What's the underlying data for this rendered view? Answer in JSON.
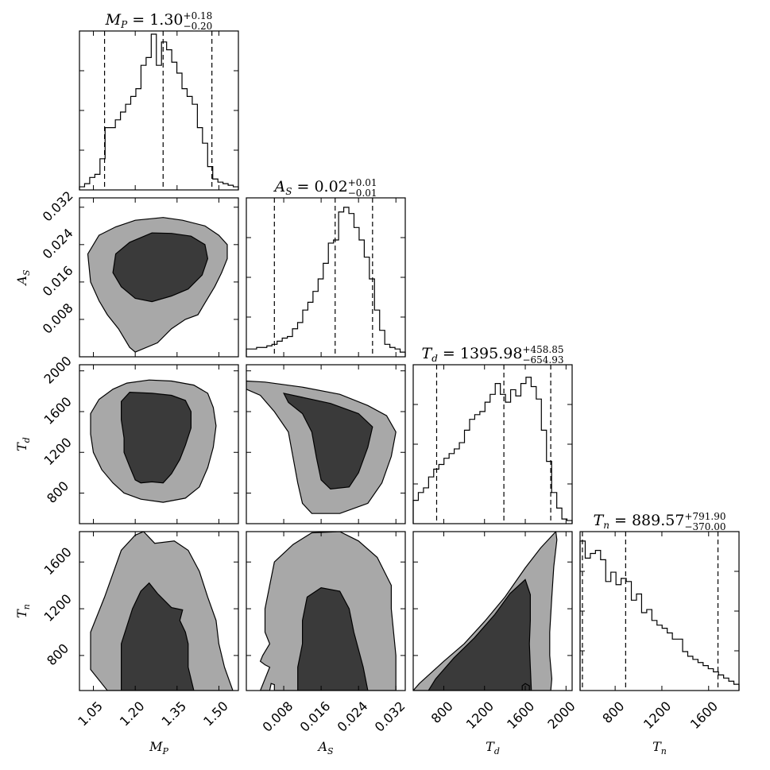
{
  "chart_data": {
    "type": "corner",
    "parameters": [
      {
        "key": "MP",
        "symbol": "M",
        "sub": "P",
        "range": [
          1.0,
          1.57
        ],
        "ticks": [
          1.05,
          1.2,
          1.35,
          1.5
        ],
        "tick_labels": [
          "1.05",
          "1.20",
          "1.35",
          "1.50"
        ],
        "title": {
          "eq": " = ",
          "value": "1.30",
          "plus": "+0.18",
          "minus": "−0.20"
        },
        "quantiles": [
          1.09,
          1.3,
          1.475
        ],
        "hist": [
          0.02,
          0.04,
          0.08,
          0.1,
          0.2,
          0.4,
          0.4,
          0.45,
          0.5,
          0.55,
          0.6,
          0.65,
          0.8,
          0.85,
          1.0,
          0.8,
          0.95,
          0.9,
          0.82,
          0.75,
          0.65,
          0.6,
          0.55,
          0.4,
          0.3,
          0.15,
          0.07,
          0.05,
          0.04,
          0.03,
          0.02
        ]
      },
      {
        "key": "AS",
        "symbol": "A",
        "sub": "S",
        "range": [
          0.0,
          0.034
        ],
        "ticks": [
          0.008,
          0.016,
          0.024,
          0.032
        ],
        "tick_labels": [
          "0.008",
          "0.016",
          "0.024",
          "0.032"
        ],
        "title": {
          "eq": " = ",
          "value": "0.02",
          "plus": "+0.01",
          "minus": "−0.01"
        },
        "quantiles": [
          0.006,
          0.019,
          0.027
        ],
        "hist": [
          0.05,
          0.05,
          0.06,
          0.06,
          0.07,
          0.08,
          0.1,
          0.12,
          0.13,
          0.18,
          0.22,
          0.3,
          0.35,
          0.42,
          0.5,
          0.6,
          0.73,
          0.75,
          0.93,
          0.96,
          0.92,
          0.83,
          0.75,
          0.64,
          0.5,
          0.3,
          0.17,
          0.08,
          0.06,
          0.05,
          0.03
        ]
      },
      {
        "key": "Td",
        "symbol": "T",
        "sub": "d",
        "range": [
          500,
          2060
        ],
        "ticks": [
          800,
          1200,
          1600,
          2000
        ],
        "tick_labels": [
          "800",
          "1200",
          "1600",
          "2000"
        ],
        "title": {
          "eq": " = ",
          "value": "1395.98",
          "plus": "+458.85",
          "minus": "−654.93"
        },
        "quantiles": [
          730,
          1390,
          1850
        ],
        "hist": [
          0.15,
          0.2,
          0.23,
          0.3,
          0.35,
          0.38,
          0.42,
          0.45,
          0.48,
          0.52,
          0.6,
          0.67,
          0.7,
          0.72,
          0.78,
          0.83,
          0.9,
          0.83,
          0.78,
          0.86,
          0.82,
          0.9,
          0.94,
          0.88,
          0.8,
          0.6,
          0.4,
          0.2,
          0.1,
          0.03,
          0.02
        ]
      },
      {
        "key": "Tn",
        "symbol": "T",
        "sub": "n",
        "range": [
          500,
          1860
        ],
        "ticks": [
          800,
          1200,
          1600
        ],
        "tick_labels": [
          "800",
          "1200",
          "1600"
        ],
        "title": {
          "eq": " = ",
          "value": "889.57",
          "plus": "+791.90",
          "minus": "−370.00"
        },
        "quantiles": [
          520,
          890,
          1680
        ],
        "hist": [
          0.96,
          0.85,
          0.88,
          0.9,
          0.84,
          0.7,
          0.76,
          0.68,
          0.72,
          0.7,
          0.58,
          0.62,
          0.5,
          0.52,
          0.45,
          0.42,
          0.4,
          0.37,
          0.33,
          0.33,
          0.25,
          0.22,
          0.2,
          0.18,
          0.16,
          0.14,
          0.12,
          0.1,
          0.08,
          0.06,
          0.04
        ]
      }
    ],
    "contours": [
      {
        "x": "MP",
        "y": "AS",
        "outer": [
          [
            1.3,
            0.0298
          ],
          [
            1.37,
            0.0292
          ],
          [
            1.45,
            0.028
          ],
          [
            1.5,
            0.026
          ],
          [
            1.53,
            0.024
          ],
          [
            1.53,
            0.021
          ],
          [
            1.51,
            0.018
          ],
          [
            1.485,
            0.015
          ],
          [
            1.455,
            0.012
          ],
          [
            1.425,
            0.009
          ],
          [
            1.38,
            0.008
          ],
          [
            1.33,
            0.006
          ],
          [
            1.28,
            0.003
          ],
          [
            1.2,
            0.001
          ],
          [
            1.18,
            0.002
          ],
          [
            1.14,
            0.006
          ],
          [
            1.1,
            0.009
          ],
          [
            1.07,
            0.012
          ],
          [
            1.04,
            0.016
          ],
          [
            1.03,
            0.022
          ],
          [
            1.07,
            0.026
          ],
          [
            1.13,
            0.0278
          ],
          [
            1.2,
            0.0292
          ]
        ],
        "inner": [
          [
            1.26,
            0.0265
          ],
          [
            1.33,
            0.0264
          ],
          [
            1.4,
            0.0258
          ],
          [
            1.45,
            0.024
          ],
          [
            1.46,
            0.021
          ],
          [
            1.44,
            0.0175
          ],
          [
            1.39,
            0.0145
          ],
          [
            1.33,
            0.013
          ],
          [
            1.26,
            0.0118
          ],
          [
            1.2,
            0.0125
          ],
          [
            1.15,
            0.015
          ],
          [
            1.12,
            0.018
          ],
          [
            1.13,
            0.022
          ],
          [
            1.18,
            0.0245
          ]
        ]
      },
      {
        "x": "MP",
        "y": "Td",
        "outer": [
          [
            1.25,
            1910
          ],
          [
            1.33,
            1900
          ],
          [
            1.41,
            1860
          ],
          [
            1.46,
            1780
          ],
          [
            1.48,
            1640
          ],
          [
            1.49,
            1460
          ],
          [
            1.48,
            1250
          ],
          [
            1.46,
            1050
          ],
          [
            1.43,
            860
          ],
          [
            1.38,
            750
          ],
          [
            1.3,
            710
          ],
          [
            1.22,
            740
          ],
          [
            1.16,
            800
          ],
          [
            1.12,
            900
          ],
          [
            1.08,
            1030
          ],
          [
            1.05,
            1200
          ],
          [
            1.04,
            1380
          ],
          [
            1.04,
            1580
          ],
          [
            1.07,
            1720
          ],
          [
            1.12,
            1820
          ],
          [
            1.17,
            1880
          ]
        ],
        "inner": [
          [
            1.18,
            1790
          ],
          [
            1.26,
            1780
          ],
          [
            1.33,
            1760
          ],
          [
            1.38,
            1710
          ],
          [
            1.4,
            1600
          ],
          [
            1.4,
            1440
          ],
          [
            1.38,
            1270
          ],
          [
            1.36,
            1130
          ],
          [
            1.33,
            990
          ],
          [
            1.3,
            900
          ],
          [
            1.26,
            910
          ],
          [
            1.22,
            900
          ],
          [
            1.2,
            930
          ],
          [
            1.18,
            1060
          ],
          [
            1.16,
            1200
          ],
          [
            1.16,
            1340
          ],
          [
            1.15,
            1520
          ],
          [
            1.15,
            1700
          ]
        ]
      },
      {
        "x": "MP",
        "y": "Tn",
        "outer": [
          [
            1.1,
            500
          ],
          [
            1.04,
            680
          ],
          [
            1.04,
            1000
          ],
          [
            1.09,
            1300
          ],
          [
            1.12,
            1500
          ],
          [
            1.15,
            1700
          ],
          [
            1.2,
            1830
          ],
          [
            1.23,
            1860
          ],
          [
            1.27,
            1760
          ],
          [
            1.34,
            1780
          ],
          [
            1.39,
            1700
          ],
          [
            1.43,
            1520
          ],
          [
            1.46,
            1300
          ],
          [
            1.49,
            1100
          ],
          [
            1.5,
            900
          ],
          [
            1.52,
            700
          ],
          [
            1.55,
            500
          ]
        ],
        "inner": [
          [
            1.15,
            500
          ],
          [
            1.15,
            900
          ],
          [
            1.19,
            1200
          ],
          [
            1.22,
            1350
          ],
          [
            1.25,
            1420
          ],
          [
            1.28,
            1330
          ],
          [
            1.33,
            1210
          ],
          [
            1.37,
            1190
          ],
          [
            1.36,
            1100
          ],
          [
            1.38,
            1000
          ],
          [
            1.39,
            900
          ],
          [
            1.39,
            700
          ],
          [
            1.41,
            500
          ]
        ]
      },
      {
        "x": "AS",
        "y": "Td",
        "outer": [
          [
            0.0,
            1900
          ],
          [
            0.004,
            1890
          ],
          [
            0.012,
            1840
          ],
          [
            0.02,
            1770
          ],
          [
            0.026,
            1660
          ],
          [
            0.03,
            1560
          ],
          [
            0.032,
            1400
          ],
          [
            0.031,
            1160
          ],
          [
            0.029,
            900
          ],
          [
            0.026,
            700
          ],
          [
            0.02,
            600
          ],
          [
            0.014,
            600
          ],
          [
            0.012,
            700
          ],
          [
            0.011,
            900
          ],
          [
            0.01,
            1150
          ],
          [
            0.009,
            1400
          ],
          [
            0.006,
            1600
          ],
          [
            0.003,
            1760
          ],
          [
            0.0,
            1820
          ]
        ],
        "inner": [
          [
            0.008,
            1780
          ],
          [
            0.012,
            1740
          ],
          [
            0.018,
            1680
          ],
          [
            0.024,
            1580
          ],
          [
            0.027,
            1450
          ],
          [
            0.026,
            1250
          ],
          [
            0.024,
            1000
          ],
          [
            0.022,
            860
          ],
          [
            0.018,
            840
          ],
          [
            0.016,
            930
          ],
          [
            0.015,
            1150
          ],
          [
            0.014,
            1400
          ],
          [
            0.012,
            1580
          ],
          [
            0.009,
            1690
          ]
        ]
      },
      {
        "x": "AS",
        "y": "Tn",
        "outer": [
          [
            0.003,
            500
          ],
          [
            0.004,
            600
          ],
          [
            0.005,
            700
          ],
          [
            0.004,
            720
          ],
          [
            0.003,
            750
          ],
          [
            0.0035,
            800
          ],
          [
            0.005,
            900
          ],
          [
            0.004,
            1000
          ],
          [
            0.004,
            1200
          ],
          [
            0.005,
            1400
          ],
          [
            0.006,
            1600
          ],
          [
            0.01,
            1750
          ],
          [
            0.014,
            1850
          ],
          [
            0.02,
            1860
          ],
          [
            0.024,
            1780
          ],
          [
            0.028,
            1640
          ],
          [
            0.031,
            1400
          ],
          [
            0.031,
            1200
          ],
          [
            0.0315,
            1000
          ],
          [
            0.032,
            800
          ],
          [
            0.032,
            600
          ],
          [
            0.032,
            500
          ],
          [
            0.024,
            500
          ],
          [
            0.02,
            500
          ],
          [
            0.015,
            500
          ],
          [
            0.01,
            500
          ],
          [
            0.006,
            500
          ],
          [
            0.006,
            550
          ],
          [
            0.0053,
            560
          ],
          [
            0.005,
            500
          ]
        ],
        "inner": [
          [
            0.011,
            500
          ],
          [
            0.011,
            700
          ],
          [
            0.012,
            900
          ],
          [
            0.012,
            1100
          ],
          [
            0.013,
            1300
          ],
          [
            0.016,
            1380
          ],
          [
            0.02,
            1350
          ],
          [
            0.022,
            1200
          ],
          [
            0.023,
            1000
          ],
          [
            0.025,
            700
          ],
          [
            0.026,
            500
          ]
        ]
      },
      {
        "x": "Td",
        "y": "Tn",
        "outer": [
          [
            500,
            500
          ],
          [
            560,
            560
          ],
          [
            800,
            750
          ],
          [
            1000,
            900
          ],
          [
            1200,
            1090
          ],
          [
            1400,
            1300
          ],
          [
            1600,
            1550
          ],
          [
            1750,
            1720
          ],
          [
            1900,
            1860
          ],
          [
            1910,
            1790
          ],
          [
            1880,
            1560
          ],
          [
            1860,
            1300
          ],
          [
            1840,
            1000
          ],
          [
            1840,
            800
          ],
          [
            1860,
            600
          ],
          [
            1850,
            500
          ]
        ],
        "inner": [
          [
            650,
            500
          ],
          [
            720,
            600
          ],
          [
            900,
            780
          ],
          [
            1100,
            950
          ],
          [
            1300,
            1150
          ],
          [
            1450,
            1330
          ],
          [
            1600,
            1450
          ],
          [
            1650,
            1320
          ],
          [
            1650,
            1100
          ],
          [
            1640,
            900
          ],
          [
            1650,
            700
          ],
          [
            1660,
            500
          ]
        ],
        "islands": [
          [
            [
              1570,
              500
            ],
            [
              1570,
              540
            ],
            [
              1600,
              560
            ],
            [
              1640,
              540
            ],
            [
              1640,
              500
            ]
          ]
        ]
      }
    ]
  }
}
